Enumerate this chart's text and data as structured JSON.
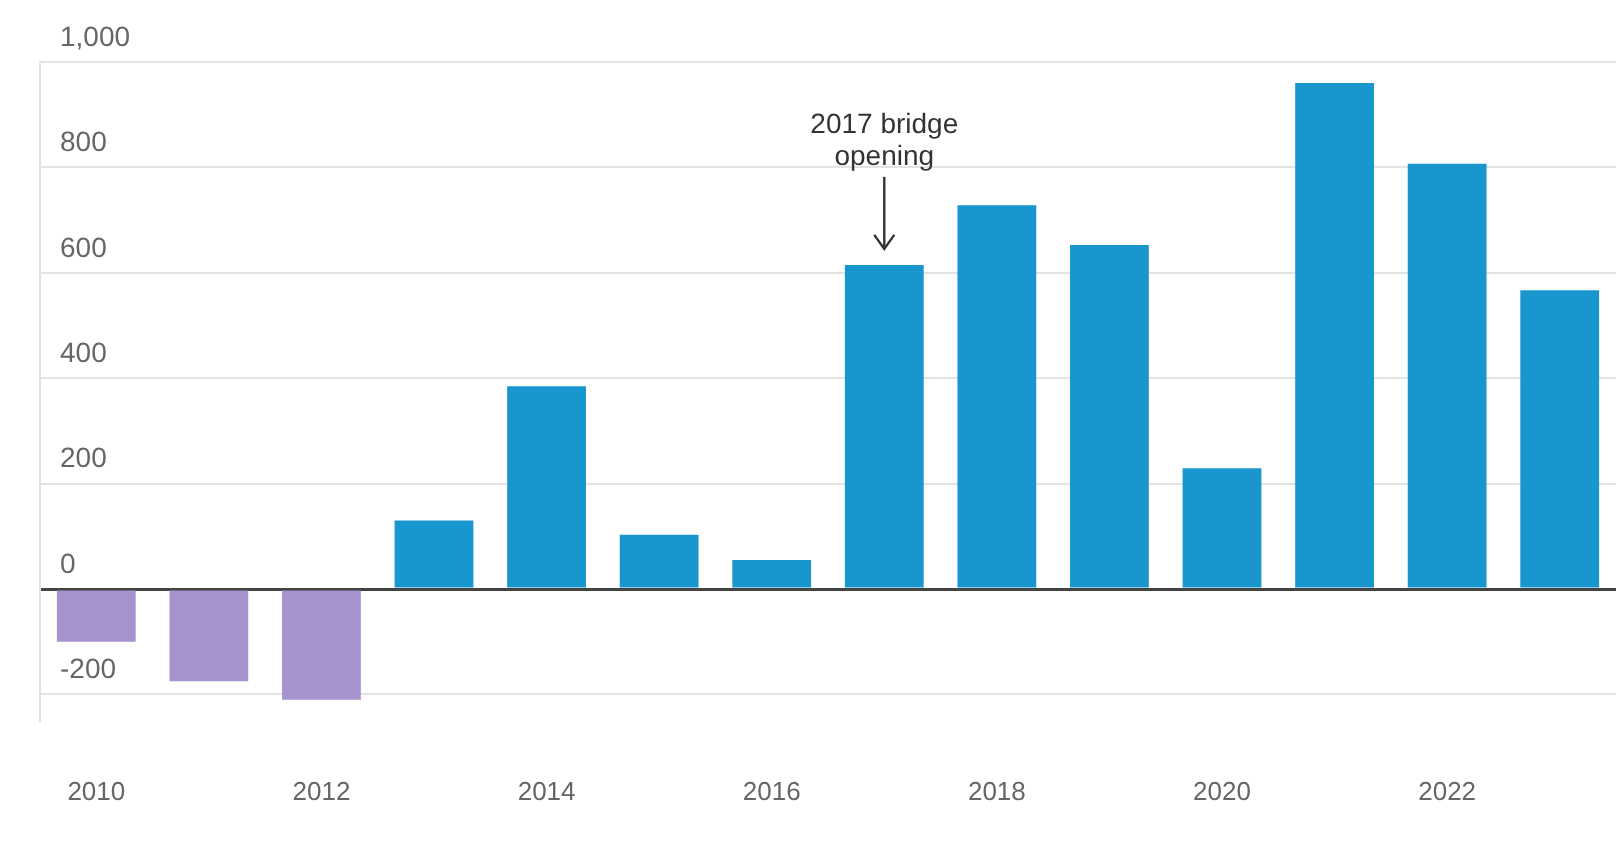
{
  "chart_data": {
    "type": "bar",
    "categories": [
      "2010",
      null,
      "2012",
      null,
      "2014",
      null,
      "2016",
      null,
      "2018",
      null,
      "2020",
      null,
      "2022",
      null
    ],
    "values": [
      -100,
      -175,
      -210,
      130,
      385,
      103,
      55,
      615,
      728,
      653,
      229,
      960,
      807,
      567
    ],
    "colors": [
      "#a692cc",
      "#a692cc",
      "#a692cc",
      "#1a96cf",
      "#1a96cf",
      "#1a96cf",
      "#1a96cf",
      "#1a96cf",
      "#1a96cf",
      "#1a96cf",
      "#1a96cf",
      "#1a96cf",
      "#1a96cf",
      "#1a96cf"
    ],
    "ylim": [
      -250,
      1000
    ],
    "yticks": [
      -200,
      0,
      200,
      400,
      600,
      800,
      {
        "value": 1000,
        "label": "1,000"
      }
    ],
    "grid": "y",
    "annotations": [
      "2017 bridge opening"
    ]
  }
}
